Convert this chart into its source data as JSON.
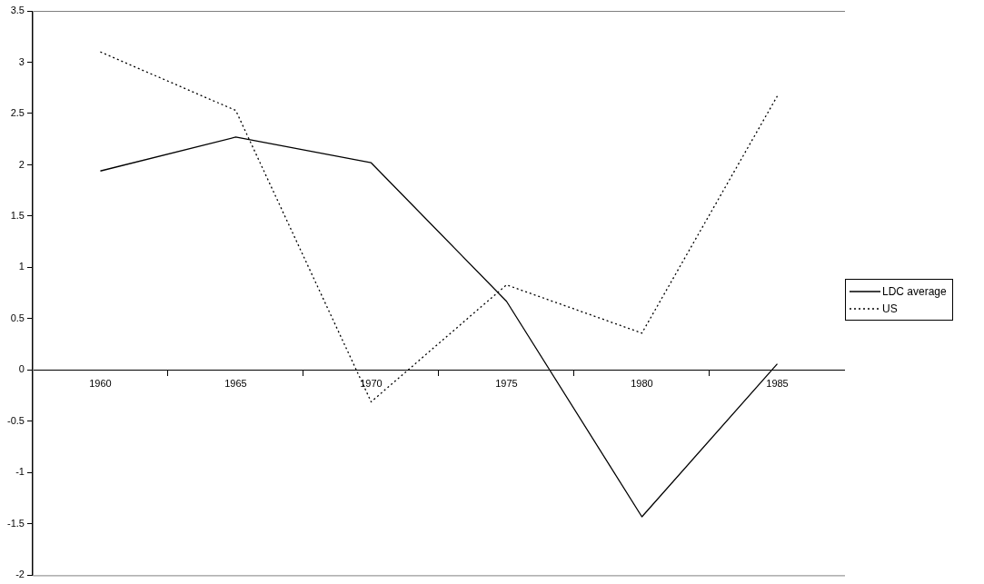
{
  "chart_data": {
    "type": "line",
    "categories": [
      "1960",
      "1965",
      "1970",
      "1975",
      "1980",
      "1985"
    ],
    "series": [
      {
        "name": "LDC average",
        "color": "#000000",
        "line_style": "solid",
        "values": [
          1.94,
          2.27,
          2.02,
          0.67,
          -1.43,
          0.06
        ]
      },
      {
        "name": "US",
        "color": "#000000",
        "line_style": "dotted",
        "values": [
          3.1,
          2.53,
          -0.31,
          0.83,
          0.36,
          2.67
        ]
      }
    ],
    "ylim": [
      -2,
      3.5
    ],
    "yticks": [
      -2,
      -1.5,
      -1,
      -0.5,
      0,
      0.5,
      1,
      1.5,
      2,
      2.5,
      3,
      3.5
    ],
    "grid": false,
    "legend": "right",
    "marker": "none"
  }
}
